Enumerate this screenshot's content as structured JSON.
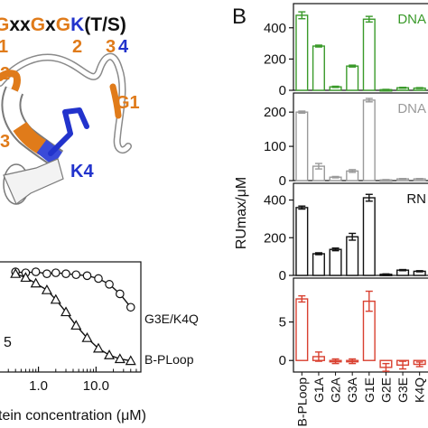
{
  "panel_a": {
    "motif_segments": [
      {
        "text": "G",
        "color": "#e07b1a"
      },
      {
        "text": "xx",
        "color": "#111111"
      },
      {
        "text": "G",
        "color": "#e07b1a"
      },
      {
        "text": "x",
        "color": "#111111"
      },
      {
        "text": "G",
        "color": "#e07b1a"
      },
      {
        "text": "K",
        "color": "#2233cc"
      },
      {
        "text": "(T/S)",
        "color": "#111111"
      }
    ],
    "motif_numbers": [
      {
        "text": "1",
        "color": "#e07b1a"
      },
      {
        "text": "2",
        "color": "#e07b1a"
      },
      {
        "text": "3",
        "color": "#e07b1a"
      },
      {
        "text": "4",
        "color": "#2233cc"
      }
    ],
    "structure_labels": {
      "g1": "G1",
      "g2": "2",
      "g3": "3",
      "k4": "K4"
    },
    "colors": {
      "glycine": "#e07b1a",
      "lysine": "#2233cc"
    }
  },
  "panel_b_label": "B",
  "chart_data": [
    {
      "type": "scatter",
      "panel": "binding-curves",
      "xlabel": "tein concentration (μM)",
      "x_scale": "log",
      "x_ticks": [
        "1.0",
        "10.0"
      ],
      "partial_label": "5",
      "series": [
        {
          "name": "G3E/K4Q",
          "marker": "circle",
          "x": [
            0.4,
            0.6,
            0.9,
            1.4,
            2.0,
            3.0,
            4.5,
            7.0,
            11.0,
            17.0,
            26.0,
            40.0
          ],
          "y": [
            0.99,
            0.98,
            0.99,
            0.97,
            0.98,
            0.97,
            0.96,
            0.95,
            0.92,
            0.86,
            0.76,
            0.62
          ]
        },
        {
          "name": "B-PLoop",
          "marker": "triangle",
          "x": [
            0.4,
            0.6,
            0.9,
            1.4,
            2.0,
            3.0,
            4.5,
            7.0,
            11.0,
            17.0,
            26.0,
            40.0
          ],
          "y": [
            0.97,
            0.93,
            0.87,
            0.8,
            0.7,
            0.57,
            0.43,
            0.3,
            0.19,
            0.12,
            0.08,
            0.06
          ]
        }
      ]
    },
    {
      "type": "bar",
      "panel": "RUmax-bars",
      "ylabel": "RUmax/μM",
      "categories": [
        "B-PLoop",
        "G1A",
        "G2A",
        "G3A",
        "G1E",
        "G2E",
        "G3E",
        "K4Q"
      ],
      "subplots": [
        {
          "name": "DNA",
          "color": "#3a9a2a",
          "ylim": [
            0,
            520
          ],
          "yticks": [
            0,
            200,
            400
          ],
          "values": [
            480,
            283,
            22,
            155,
            455,
            4,
            16,
            14
          ],
          "errors": [
            22,
            6,
            4,
            6,
            18,
            2,
            3,
            3
          ]
        },
        {
          "name": "DNA",
          "color": "#9a9a9a",
          "ylim": [
            0,
            240
          ],
          "yticks": [
            0,
            100,
            200
          ],
          "values": [
            200,
            42,
            10,
            28,
            235,
            2,
            5,
            5
          ],
          "errors": [
            3,
            8,
            2,
            4,
            5,
            1,
            1,
            1
          ]
        },
        {
          "name": "RN",
          "color": "#111111",
          "ylim": [
            0,
            460
          ],
          "yticks": [
            0,
            200,
            400
          ],
          "values": [
            360,
            115,
            138,
            205,
            412,
            6,
            28,
            22
          ],
          "errors": [
            8,
            5,
            7,
            18,
            18,
            2,
            3,
            3
          ]
        },
        {
          "name": "",
          "color": "#d94030",
          "ylim": [
            -1.5,
            10
          ],
          "yticks": [
            0,
            5
          ],
          "values": [
            8.0,
            0.5,
            -0.1,
            -0.1,
            7.7,
            -0.9,
            -0.6,
            -0.5
          ],
          "errors": [
            0.4,
            0.6,
            0.3,
            0.3,
            1.3,
            0.5,
            0.5,
            0.3
          ]
        }
      ]
    }
  ]
}
